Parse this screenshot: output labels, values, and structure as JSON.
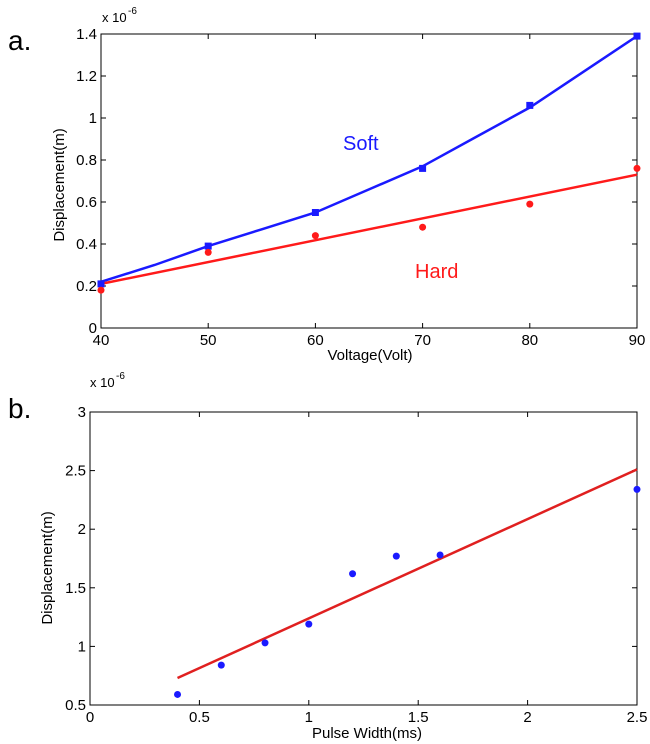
{
  "chart_data": [
    {
      "type": "line",
      "panel_label": "a.",
      "xlabel": "Voltage(Volt)",
      "ylabel": "Displacement(m)",
      "y_multiplier": "x 10",
      "y_exponent": "-6",
      "xlim": [
        40,
        90
      ],
      "ylim": [
        0,
        1.4
      ],
      "xticks": [
        40,
        50,
        60,
        70,
        80,
        90
      ],
      "yticks": [
        0,
        0.2,
        0.4,
        0.6,
        0.8,
        1,
        1.2,
        1.4
      ],
      "grid": false,
      "series": [
        {
          "name": "Soft",
          "color": "#1a1aff",
          "marker": "square",
          "points_x": [
            40,
            50,
            60,
            70,
            80,
            90
          ],
          "points_y": [
            0.21,
            0.39,
            0.55,
            0.76,
            1.06,
            1.39
          ],
          "fit_x": [
            40,
            45,
            50,
            55,
            60,
            65,
            70,
            75,
            80,
            85,
            90
          ],
          "fit_y": [
            0.22,
            0.3,
            0.39,
            0.47,
            0.55,
            0.66,
            0.77,
            0.91,
            1.05,
            1.22,
            1.39
          ]
        },
        {
          "name": "Hard",
          "color": "#ff1a1a",
          "marker": "circle",
          "points_x": [
            40,
            50,
            60,
            70,
            80,
            90
          ],
          "points_y": [
            0.18,
            0.36,
            0.44,
            0.48,
            0.59,
            0.76
          ],
          "fit_x": [
            40,
            90
          ],
          "fit_y": [
            0.21,
            0.73
          ]
        }
      ]
    },
    {
      "type": "scatter",
      "panel_label": "b.",
      "xlabel": "Pulse Width(ms)",
      "ylabel": "Displacement(m)",
      "y_multiplier": "x 10",
      "y_exponent": "-6",
      "xlim": [
        0,
        2.5
      ],
      "ylim": [
        0.5,
        3
      ],
      "xticks": [
        0,
        0.5,
        1,
        1.5,
        2,
        2.5
      ],
      "yticks": [
        0.5,
        1,
        1.5,
        2,
        2.5,
        3
      ],
      "grid": false,
      "series": [
        {
          "color": "#1a1aff",
          "marker": "circle",
          "points_x": [
            0.4,
            0.6,
            0.8,
            1.0,
            1.2,
            1.4,
            1.6,
            2.5
          ],
          "points_y": [
            0.59,
            0.84,
            1.03,
            1.19,
            1.62,
            1.77,
            1.78,
            2.34
          ]
        },
        {
          "color": "#e02020",
          "marker": "none",
          "fit_x": [
            0.4,
            2.5
          ],
          "fit_y": [
            0.73,
            2.51
          ]
        }
      ]
    }
  ]
}
